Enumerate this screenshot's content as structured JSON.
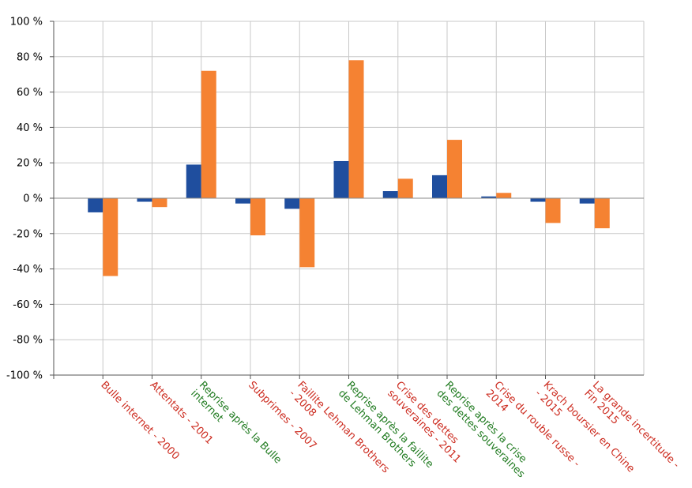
{
  "chart_data": {
    "type": "bar",
    "title": "",
    "xlabel": "",
    "ylabel": "",
    "ylim": [
      -100,
      100
    ],
    "y_ticks": [
      100,
      80,
      60,
      40,
      20,
      0,
      -20,
      -40,
      -60,
      -80,
      -100
    ],
    "y_tick_labels": [
      "100 %",
      "80 %",
      "60 %",
      "40 %",
      "20 %",
      "0 %",
      "-20 %",
      "-40 %",
      "-60 %",
      "-80 %",
      "-100 %"
    ],
    "grid": true,
    "legend": "none",
    "categories": [
      "Bulle internet - 2000",
      "Attentats - 2001",
      "Reprise après la Bulle internet",
      "Subprimes - 2007",
      "Faillite Lehman Brothers - 2008",
      "Reprise après la faillite de Lehman Brothers",
      "Crise des dettes souveraines - 2011",
      "Reprise après la crise des dettes souveraines",
      "Crise du rouble russe - 2014",
      "Krach boursier en Chine - 2015",
      "La grande incertitude - Fin 2015"
    ],
    "category_label_lines": [
      [
        "Bulle internet - 2000"
      ],
      [
        "Attentats - 2001"
      ],
      [
        "Reprise après la Bulle",
        "internet"
      ],
      [
        "Subprimes - 2007"
      ],
      [
        "Faillite Lehman Brothers",
        "- 2008"
      ],
      [
        "Reprise après la faillite",
        "de Lehman Brothers"
      ],
      [
        "Crise des dettes",
        "souveraines - 2011"
      ],
      [
        "Reprise après la crise",
        "des dettes souveraines"
      ],
      [
        "Crise du rouble russe -",
        "2014"
      ],
      [
        "Krach boursier en Chine",
        "- 2015"
      ],
      [
        "La grande incertitude -",
        "Fin 2015"
      ]
    ],
    "category_label_colors": [
      "#cc2a1e",
      "#cc2a1e",
      "#1f7a1f",
      "#cc2a1e",
      "#cc2a1e",
      "#1f7a1f",
      "#cc2a1e",
      "#1f7a1f",
      "#cc2a1e",
      "#cc2a1e",
      "#cc2a1e"
    ],
    "series": [
      {
        "color": "#1f4e9e",
        "values": [
          -8,
          -2,
          19,
          -3,
          -6,
          21,
          4,
          13,
          1,
          -2,
          -3
        ]
      },
      {
        "color": "#f58232",
        "values": [
          -44,
          -5,
          72,
          -21,
          -39,
          78,
          11,
          33,
          3,
          -14,
          -17
        ]
      }
    ],
    "colors": {
      "grid": "#c8c8c8",
      "axis": "#555555"
    }
  }
}
